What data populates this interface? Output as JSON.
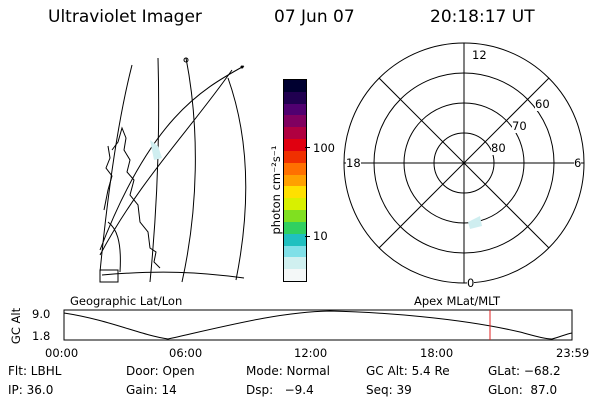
{
  "header": {
    "title": "Ultraviolet Imager",
    "date": "07 Jun 07",
    "time": "20:18:17 UT"
  },
  "geo_panel": {
    "label": "Geographic Lat/Lon"
  },
  "colorbar": {
    "unit": "photon cm⁻²s⁻¹",
    "ticks": [
      "100",
      "10"
    ],
    "colors": [
      "#000030",
      "#200050",
      "#500070",
      "#800060",
      "#b00040",
      "#e00010",
      "#f03000",
      "#ff7000",
      "#ffa000",
      "#ffe000",
      "#d8f000",
      "#80e020",
      "#30d060",
      "#20c0c0",
      "#80e0e8",
      "#d0f0f0",
      "#f4f8f8"
    ]
  },
  "polar_panel": {
    "label": "Apex MLat/MLT",
    "mlt_labels": {
      "top": "12",
      "left": "18",
      "right": "6",
      "bottom": "0"
    },
    "lat_labels": [
      "60",
      "70",
      "80"
    ]
  },
  "altitude_plot": {
    "ylabel": "GC Alt",
    "yticks": [
      "9.0",
      "1.8"
    ],
    "xticks": [
      "00:00",
      "06:00",
      "12:00",
      "18:00",
      "23:59"
    ]
  },
  "info": {
    "flt": "Flt: LBHL",
    "door": "Door: Open",
    "mode": "Mode: Normal",
    "gc_alt": "GC Alt: 5.4 Re",
    "glat": "GLat: −68.2",
    "ip": "IP: 36.0",
    "gain": "Gain: 14",
    "dsp": "Dsp:   −9.4",
    "seq": "Seq: 39",
    "glon": "GLon:  87.0"
  },
  "colors": {
    "marker": "#e02020",
    "line": "#000000",
    "aurora": "#cfeef0"
  }
}
